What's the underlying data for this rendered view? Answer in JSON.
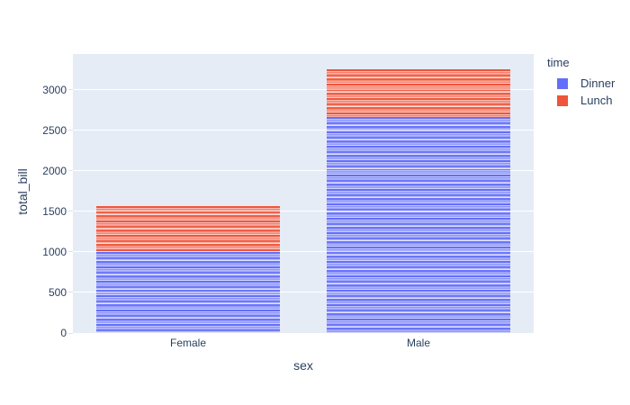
{
  "chart_data": {
    "type": "bar",
    "stacked": true,
    "title": "",
    "xlabel": "sex",
    "ylabel": "total_bill",
    "categories": [
      "Female",
      "Male"
    ],
    "series": [
      {
        "name": "Dinner",
        "color": "#636EFA",
        "values": [
          1000,
          2661
        ]
      },
      {
        "name": "Lunch",
        "color": "#EF553B",
        "values": [
          571,
          596
        ]
      }
    ],
    "yticks": [
      0,
      500,
      1000,
      1500,
      2000,
      2500,
      3000
    ],
    "ylim": [
      0,
      3444
    ],
    "legend_title": "time",
    "legend_position": "top-right-outside",
    "grid": true,
    "plot_background": "#E5ECF6",
    "gridline_color": "#FFFFFF",
    "text_color": "#2a3f5f",
    "segment_note": "bars appear as many thin horizontal stripes (one segment per record)"
  }
}
